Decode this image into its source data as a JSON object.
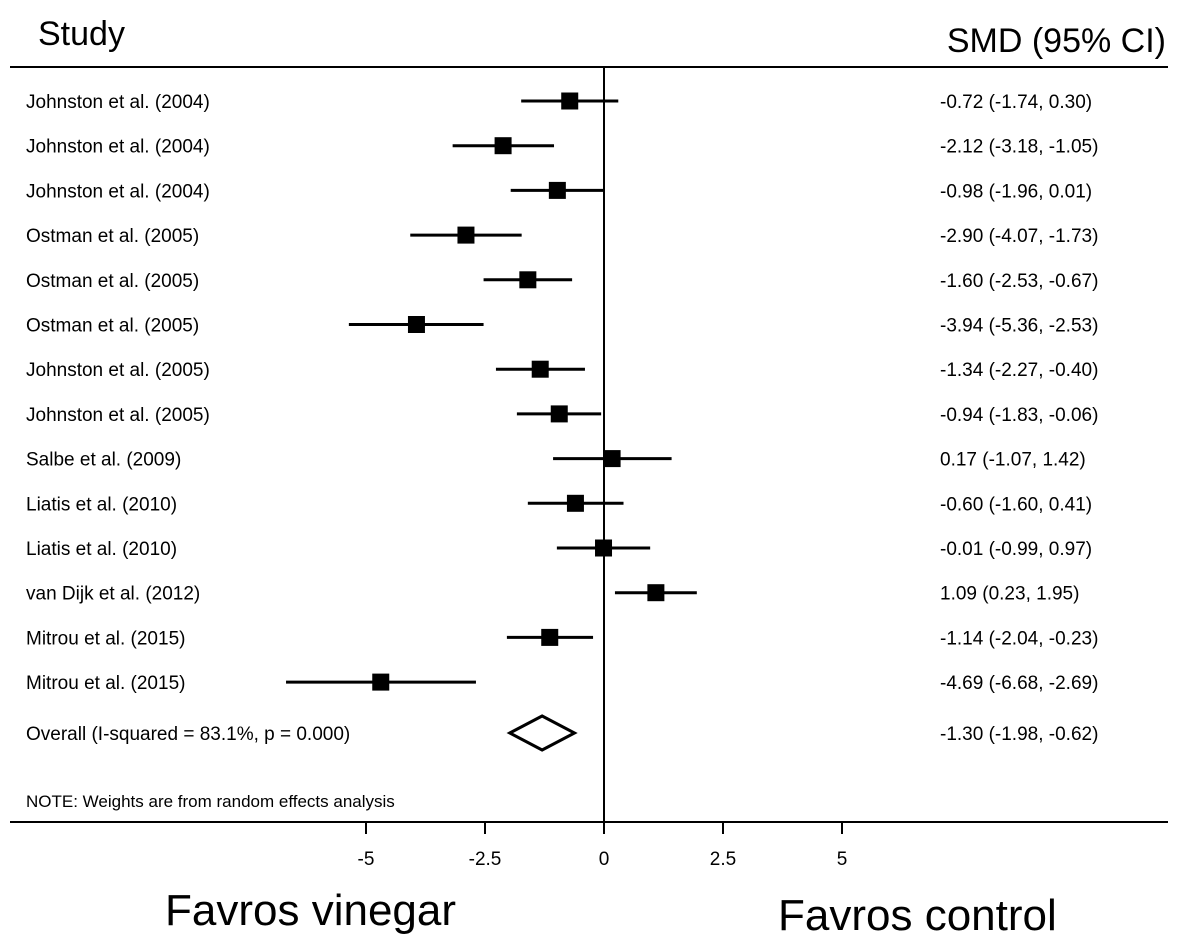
{
  "chart_data": {
    "type": "forest",
    "columns": {
      "study": "Study",
      "effect": "SMD (95% CI)"
    },
    "studies": [
      {
        "label": "Johnston et al. (2004)",
        "smd": -0.72,
        "lo": -1.74,
        "hi": 0.3,
        "ci_text": "-0.72 (-1.74, 0.30)"
      },
      {
        "label": "Johnston et al. (2004)",
        "smd": -2.12,
        "lo": -3.18,
        "hi": -1.05,
        "ci_text": "-2.12 (-3.18, -1.05)"
      },
      {
        "label": "Johnston et al. (2004)",
        "smd": -0.98,
        "lo": -1.96,
        "hi": 0.01,
        "ci_text": "-0.98 (-1.96, 0.01)"
      },
      {
        "label": "Ostman et al. (2005)",
        "smd": -2.9,
        "lo": -4.07,
        "hi": -1.73,
        "ci_text": "-2.90 (-4.07, -1.73)"
      },
      {
        "label": "Ostman et al. (2005)",
        "smd": -1.6,
        "lo": -2.53,
        "hi": -0.67,
        "ci_text": "-1.60 (-2.53, -0.67)"
      },
      {
        "label": "Ostman et al. (2005)",
        "smd": -3.94,
        "lo": -5.36,
        "hi": -2.53,
        "ci_text": "-3.94 (-5.36, -2.53)"
      },
      {
        "label": "Johnston et al. (2005)",
        "smd": -1.34,
        "lo": -2.27,
        "hi": -0.4,
        "ci_text": "-1.34 (-2.27, -0.40)"
      },
      {
        "label": "Johnston et al. (2005)",
        "smd": -0.94,
        "lo": -1.83,
        "hi": -0.06,
        "ci_text": "-0.94 (-1.83, -0.06)"
      },
      {
        "label": "Salbe et al. (2009)",
        "smd": 0.17,
        "lo": -1.07,
        "hi": 1.42,
        "ci_text": "0.17 (-1.07, 1.42)"
      },
      {
        "label": "Liatis et al. (2010)",
        "smd": -0.6,
        "lo": -1.6,
        "hi": 0.41,
        "ci_text": "-0.60 (-1.60, 0.41)"
      },
      {
        "label": "Liatis et al. (2010)",
        "smd": -0.01,
        "lo": -0.99,
        "hi": 0.97,
        "ci_text": "-0.01 (-0.99, 0.97)"
      },
      {
        "label": "van Dijk et al. (2012)",
        "smd": 1.09,
        "lo": 0.23,
        "hi": 1.95,
        "ci_text": "1.09 (0.23, 1.95)"
      },
      {
        "label": "Mitrou et al. (2015)",
        "smd": -1.14,
        "lo": -2.04,
        "hi": -0.23,
        "ci_text": "-1.14 (-2.04, -0.23)"
      },
      {
        "label": "Mitrou et al. (2015)",
        "smd": -4.69,
        "lo": -6.68,
        "hi": -2.69,
        "ci_text": "-4.69 (-6.68, -2.69)"
      }
    ],
    "overall": {
      "label": "Overall  (I-squared = 83.1%, p = 0.000)",
      "smd": -1.3,
      "lo": -1.98,
      "hi": -0.62,
      "ci_text": "-1.30 (-1.98, -0.62)"
    },
    "note": "NOTE: Weights are from random effects analysis",
    "x_ticks": [
      -5,
      -2.5,
      0,
      2.5,
      5
    ],
    "x_tick_labels": [
      "-5",
      "-2.5",
      "0",
      "2.5",
      "5"
    ],
    "null_line": 0,
    "favors_left": "Favros vinegar",
    "favors_right": "Favros control"
  }
}
